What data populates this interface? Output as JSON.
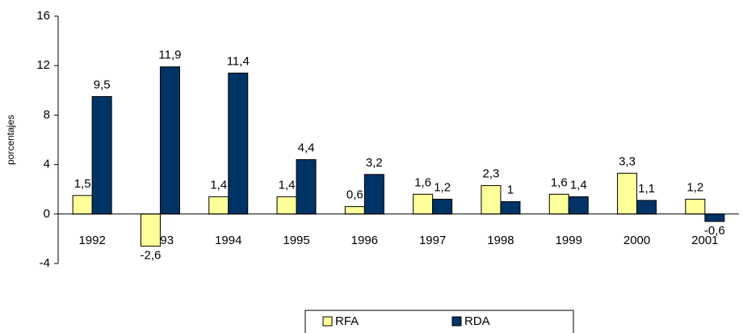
{
  "chart_data": {
    "type": "bar",
    "y_label": "porcentajes",
    "categories": [
      "1992",
      "1993",
      "1994",
      "1995",
      "1996",
      "1997",
      "1998",
      "1999",
      "2000",
      "2001"
    ],
    "series": [
      {
        "name": "RFA",
        "color": "#ffff99",
        "values": [
          1.5,
          -2.6,
          1.4,
          1.4,
          0.6,
          1.6,
          2.3,
          1.6,
          3.3,
          1.2
        ],
        "value_labels": [
          "1,5",
          "-2,6",
          "1,4",
          "1,4",
          "0,6",
          "1,6",
          "2,3",
          "1,6",
          "3,3",
          "1,2"
        ]
      },
      {
        "name": "RDA",
        "color": "#003366",
        "values": [
          9.5,
          11.9,
          11.4,
          4.4,
          3.2,
          1.2,
          1,
          1.4,
          1.1,
          -0.6
        ],
        "value_labels": [
          "9,5",
          "11,9",
          "11,4",
          "4,4",
          "3,2",
          "1,2",
          "1",
          "1,4",
          "1,1",
          "-0,6"
        ]
      }
    ],
    "ylim": [
      -4,
      16
    ],
    "yticks": [
      -4,
      0,
      4,
      8,
      12,
      16
    ],
    "grid": false,
    "legend": "bottom"
  }
}
